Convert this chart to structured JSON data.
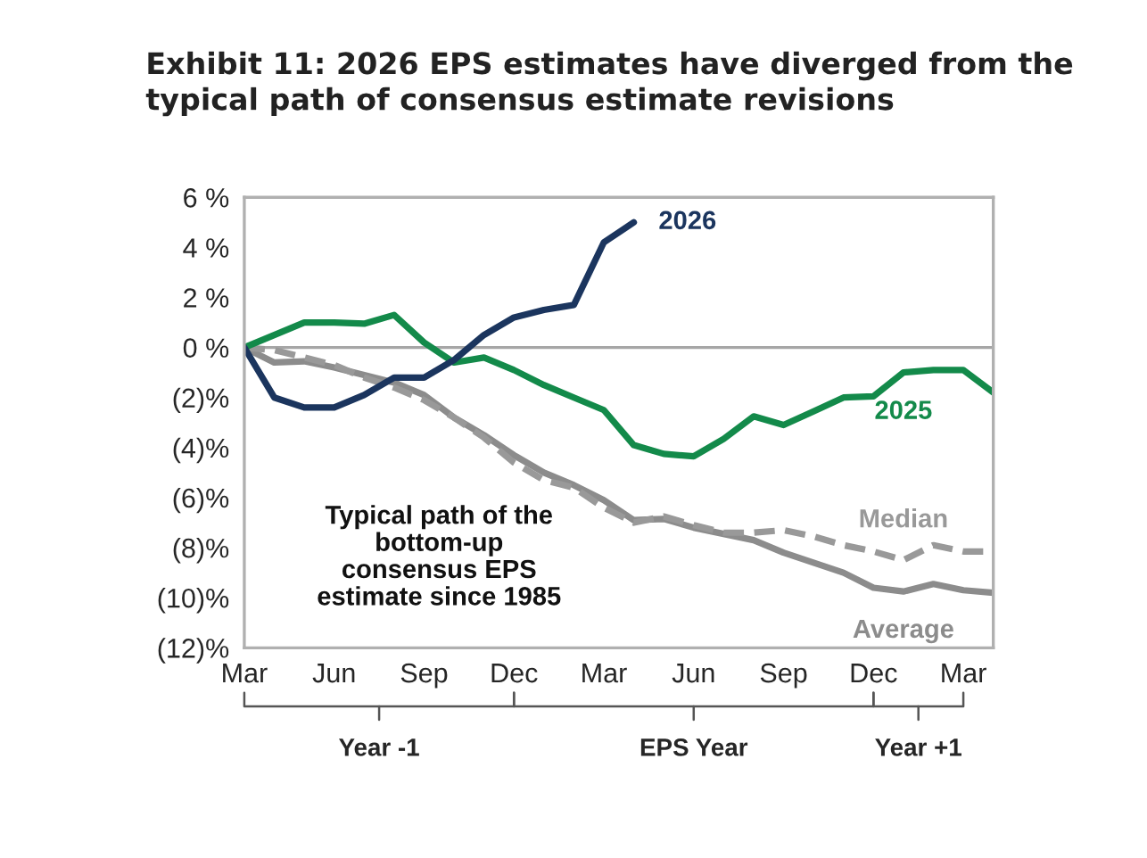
{
  "chart_data": {
    "type": "line",
    "title": "Exhibit 11: 2026 EPS estimates have diverged from the\ntypical path of consensus estimate revisions",
    "categories": [
      "Mar",
      null,
      null,
      "Jun",
      null,
      null,
      "Sep",
      null,
      null,
      "Dec",
      null,
      null,
      "Mar",
      null,
      null,
      "Jun",
      null,
      null,
      "Sep",
      null,
      null,
      "Dec",
      null,
      null,
      "Mar",
      null
    ],
    "ylim": [
      -12,
      6
    ],
    "yticks": [
      {
        "value": 6,
        "label": "6 %"
      },
      {
        "value": 4,
        "label": "4 %"
      },
      {
        "value": 2,
        "label": "2 %"
      },
      {
        "value": 0,
        "label": "0 %"
      },
      {
        "value": -2,
        "label": "(2)%"
      },
      {
        "value": -4,
        "label": "(4)%"
      },
      {
        "value": -6,
        "label": "(6)%"
      },
      {
        "value": -8,
        "label": "(8)%"
      },
      {
        "value": -10,
        "label": "(10)%"
      },
      {
        "value": -12,
        "label": "(12)%"
      }
    ],
    "grid": false,
    "ref_lines": [
      {
        "axis": "y",
        "value": 0,
        "color": "#a6a6a6"
      }
    ],
    "series": [
      {
        "name": "Average",
        "color": "#8c8c8c",
        "line_style": "solid",
        "values": [
          0,
          -0.6,
          -0.55,
          -0.8,
          -1.1,
          -1.4,
          -1.9,
          -2.8,
          -3.5,
          -4.3,
          -5.0,
          -5.5,
          -6.1,
          -6.9,
          -6.85,
          -7.2,
          -7.45,
          -7.7,
          -8.2,
          -8.6,
          -9.0,
          -9.6,
          -9.75,
          -9.45,
          -9.7,
          -9.8
        ]
      },
      {
        "name": "Median",
        "color": "#999999",
        "line_style": "dashed",
        "values": [
          0,
          -0.1,
          -0.4,
          -0.7,
          -1.2,
          -1.6,
          -2.1,
          -2.8,
          -3.6,
          -4.6,
          -5.3,
          -5.6,
          -6.4,
          -7.0,
          -6.75,
          -7.1,
          -7.4,
          -7.4,
          -7.3,
          -7.55,
          -7.9,
          -8.15,
          -8.5,
          -7.9,
          -8.15,
          -8.15
        ]
      },
      {
        "name": "2025",
        "color": "#138a4a",
        "line_style": "solid",
        "values": [
          0,
          0.5,
          1.0,
          1.0,
          0.95,
          1.3,
          0.2,
          -0.6,
          -0.4,
          -0.9,
          -1.5,
          -2.0,
          -2.5,
          -3.9,
          -4.25,
          -4.35,
          -3.65,
          -2.75,
          -3.1,
          -2.55,
          -2.0,
          -1.95,
          -1.0,
          -0.9,
          -0.9,
          -1.8
        ]
      },
      {
        "name": "2026",
        "color": "#1b355e",
        "line_style": "solid",
        "values": [
          0,
          -2.0,
          -2.4,
          -2.4,
          -1.9,
          -1.2,
          -1.2,
          -0.5,
          0.5,
          1.2,
          1.5,
          1.7,
          4.2,
          5.0,
          null,
          null,
          null,
          null,
          null,
          null,
          null,
          null,
          null,
          null,
          null,
          null
        ]
      }
    ],
    "annotations": [
      "Typical path of the\nbottom-up\nconsensus EPS\nestimate since 1985",
      "Year -1",
      "EPS Year",
      "Year +1"
    ]
  }
}
